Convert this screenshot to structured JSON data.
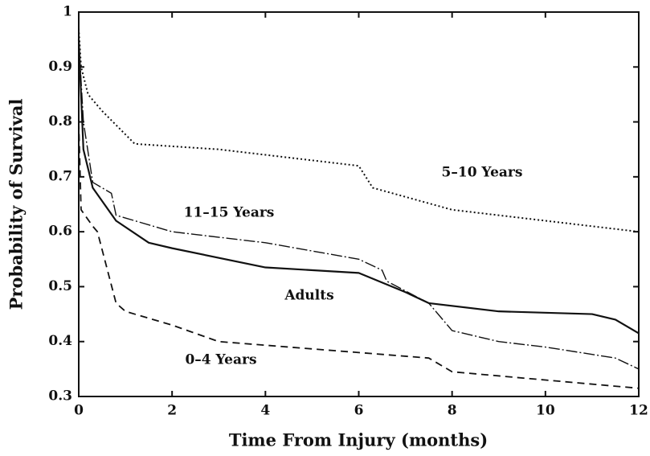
{
  "chart_data": {
    "type": "line",
    "x_label": "Time From Injury (months)",
    "y_label": "Probability of Survival",
    "xlim": [
      0,
      12
    ],
    "xticks": [
      0,
      2,
      4,
      6,
      8,
      10,
      12
    ],
    "ylim": [
      0.3,
      1
    ],
    "yticks": [
      0.3,
      0.4,
      0.5,
      0.6,
      0.7,
      0.8,
      0.9,
      1
    ],
    "color": "#111111",
    "series": [
      {
        "name": "5–10 Years",
        "line_style": "dotted",
        "x": [
          0,
          0.05,
          0.2,
          0.5,
          1.2,
          3,
          6,
          6.3,
          8,
          10,
          12
        ],
        "values": [
          0.97,
          0.9,
          0.85,
          0.82,
          0.76,
          0.75,
          0.72,
          0.68,
          0.64,
          0.62,
          0.6
        ]
      },
      {
        "name": "11–15 Years",
        "line_style": "dashdot",
        "x": [
          0,
          0.1,
          0.3,
          0.7,
          0.8,
          2,
          4,
          6,
          6.5,
          6.6,
          7.5,
          8,
          9,
          10,
          11.5,
          12
        ],
        "values": [
          0.95,
          0.8,
          0.69,
          0.67,
          0.63,
          0.6,
          0.58,
          0.55,
          0.53,
          0.51,
          0.47,
          0.42,
          0.4,
          0.39,
          0.37,
          0.35
        ]
      },
      {
        "name": "Adults",
        "line_style": "solid",
        "x": [
          0,
          0.1,
          0.3,
          0.8,
          1.5,
          2,
          4,
          6,
          7,
          7.5,
          9,
          11,
          11.5,
          12
        ],
        "values": [
          0.95,
          0.75,
          0.68,
          0.62,
          0.58,
          0.57,
          0.535,
          0.525,
          0.49,
          0.47,
          0.455,
          0.45,
          0.44,
          0.415
        ]
      },
      {
        "name": "0–4 Years",
        "line_style": "dashed",
        "x": [
          0,
          0.05,
          0.3,
          0.4,
          0.8,
          1,
          2,
          3,
          6,
          7.5,
          8,
          10,
          12
        ],
        "values": [
          0.8,
          0.64,
          0.61,
          0.6,
          0.47,
          0.455,
          0.43,
          0.4,
          0.38,
          0.37,
          0.345,
          0.33,
          0.315
        ]
      }
    ]
  }
}
